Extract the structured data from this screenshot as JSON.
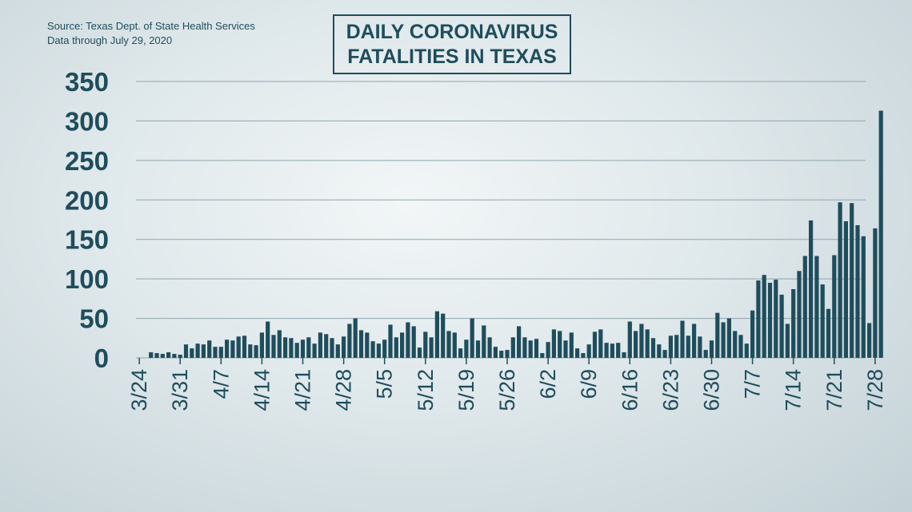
{
  "header": {
    "source_line1": "Source: Texas Dept. of State Health Services",
    "source_line2": "Data through July 29, 2020",
    "title_line1": "DAILY CORONAVIRUS",
    "title_line2": "FATALITIES IN TEXAS"
  },
  "colors": {
    "bar": "#1f4d5c",
    "text": "#1f4d5c",
    "grid": "#8fa5ad"
  },
  "chart_data": {
    "type": "bar",
    "title": "DAILY CORONAVIRUS FATALITIES IN TEXAS",
    "xlabel": "",
    "ylabel": "",
    "ylim": [
      0,
      350
    ],
    "yticks": [
      0,
      50,
      100,
      150,
      200,
      250,
      300,
      350
    ],
    "grid": true,
    "start_date": "3/24",
    "end_date": "7/29",
    "xtick_labels": [
      "3/24",
      "3/31",
      "4/7",
      "4/14",
      "4/21",
      "4/28",
      "5/5",
      "5/12",
      "5/19",
      "5/26",
      "6/2",
      "6/9",
      "6/16",
      "6/23",
      "6/30",
      "7/7",
      "7/14",
      "7/21",
      "7/28"
    ],
    "values": [
      0,
      0,
      7,
      6,
      5,
      7,
      5,
      4,
      17,
      12,
      18,
      17,
      22,
      14,
      14,
      23,
      22,
      27,
      28,
      17,
      16,
      32,
      46,
      29,
      35,
      26,
      25,
      19,
      23,
      26,
      18,
      32,
      30,
      25,
      17,
      27,
      43,
      50,
      35,
      32,
      21,
      18,
      23,
      42,
      26,
      32,
      45,
      40,
      13,
      33,
      26,
      59,
      56,
      34,
      32,
      12,
      23,
      50,
      22,
      41,
      26,
      14,
      9,
      10,
      26,
      40,
      26,
      22,
      24,
      6,
      20,
      36,
      34,
      22,
      32,
      12,
      6,
      17,
      33,
      36,
      19,
      18,
      19,
      7,
      46,
      34,
      43,
      36,
      25,
      17,
      10,
      28,
      29,
      47,
      28,
      43,
      27,
      10,
      22,
      57,
      45,
      50,
      34,
      29,
      18,
      60,
      98,
      105,
      95,
      99,
      80,
      43,
      87,
      110,
      129,
      174,
      129,
      93,
      62,
      130,
      197,
      173,
      196,
      168,
      154,
      44,
      164,
      313
    ]
  }
}
